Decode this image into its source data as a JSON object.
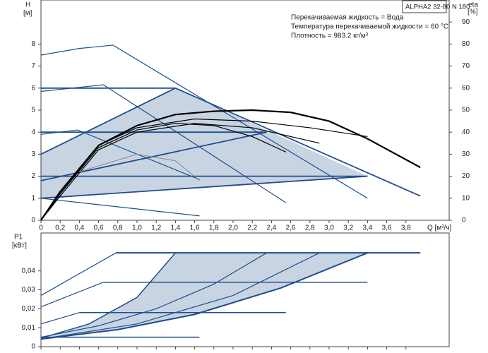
{
  "chart_data": [
    {
      "type": "line",
      "title": "ALPHA2 32-80 N 180",
      "annotations": [
        "Перекачиваемая жидкость = Вода",
        "Температура перекачиваемой жидкости = 60 °C",
        "Плотность = 983.2 кг/м³"
      ],
      "y_label": "H",
      "y_unit": "[м]",
      "y2_label": "eta",
      "y2_unit": "[%]",
      "x_label": "Q [м³/ч]",
      "xlim": [
        0,
        4.25
      ],
      "ylim": [
        0,
        10
      ],
      "y2lim": [
        0,
        100
      ],
      "xticks": [
        0,
        {
          "value": 0.2,
          "label": "0,2"
        },
        {
          "value": 0.4,
          "label": "0,4"
        },
        {
          "value": 0.6,
          "label": "0,6"
        },
        {
          "value": 0.8,
          "label": "0,8"
        },
        {
          "value": 1.0,
          "label": "1,0"
        },
        {
          "value": 1.2,
          "label": "1,2"
        },
        {
          "value": 1.4,
          "label": "1,4"
        },
        {
          "value": 1.6,
          "label": "1,6"
        },
        {
          "value": 1.8,
          "label": "1,8"
        },
        {
          "value": 2.0,
          "label": "2,0"
        },
        {
          "value": 2.2,
          "label": "2,2"
        },
        {
          "value": 2.4,
          "label": "2,4"
        },
        {
          "value": 2.6,
          "label": "2,6"
        },
        {
          "value": 2.8,
          "label": "2,8"
        },
        {
          "value": 3.0,
          "label": "3,0"
        },
        {
          "value": 3.2,
          "label": "3,2"
        },
        {
          "value": 3.4,
          "label": "3,4"
        },
        {
          "value": 3.6,
          "label": "3,6"
        },
        {
          "value": 3.8,
          "label": "3,8"
        }
      ],
      "yticks": [
        0,
        1,
        2,
        3,
        4,
        5,
        6,
        7,
        8
      ],
      "y2ticks": [
        0,
        10,
        20,
        30,
        40,
        50,
        60,
        70,
        80,
        90
      ],
      "shaded": {
        "color": "#c9d4e3",
        "x": [
          0,
          1.4,
          3.4,
          0
        ],
        "y": [
          3,
          6,
          2,
          1
        ]
      },
      "series": [
        {
          "color": "#1f4e8c",
          "width": 1.2,
          "x": [
            0,
            0.4,
            0.75,
            3.4
          ],
          "values": [
            7.5,
            7.8,
            7.95,
            1.0
          ]
        },
        {
          "color": "#1f4e8c",
          "width": 1.2,
          "x": [
            0,
            0.65,
            2.55
          ],
          "values": [
            5.85,
            6.15,
            0.8
          ]
        },
        {
          "color": "#1f4e8c",
          "width": 1.2,
          "x": [
            0,
            0.38,
            1.65
          ],
          "values": [
            3.9,
            4.1,
            1.85
          ]
        },
        {
          "color": "#1f4e8c",
          "width": 1.2,
          "x": [
            0,
            1.65
          ],
          "values": [
            1,
            0.2
          ]
        },
        {
          "color": "#1f4e8c",
          "width": 1.8,
          "x": [
            0,
            1.4
          ],
          "values": [
            6,
            6
          ]
        },
        {
          "color": "#1f4e8c",
          "width": 1.8,
          "x": [
            0,
            2.35
          ],
          "values": [
            4,
            4
          ]
        },
        {
          "color": "#1f4e8c",
          "width": 1.8,
          "x": [
            0,
            3.4
          ],
          "values": [
            2,
            2
          ]
        },
        {
          "color": "#1f4e8c",
          "width": 1.8,
          "x": [
            0,
            1.4
          ],
          "values": [
            3,
            6
          ]
        },
        {
          "color": "#1f4e8c",
          "width": 1.8,
          "x": [
            0,
            2.35
          ],
          "values": [
            1.8,
            4
          ]
        },
        {
          "color": "#1f4e8c",
          "width": 1.8,
          "x": [
            0,
            3.4
          ],
          "values": [
            1,
            2
          ]
        },
        {
          "color": "#1f4e8c",
          "width": 1.8,
          "x": [
            1.4,
            3.95
          ],
          "values": [
            6,
            1.1
          ]
        },
        {
          "color": "#000000",
          "width": 2.2,
          "axis": "y2",
          "x": [
            0,
            0.2,
            0.6,
            1.0,
            1.4,
            1.8,
            2.2,
            2.6,
            3.0,
            3.4,
            3.95
          ],
          "values": [
            0,
            13,
            34,
            43,
            48,
            49.5,
            50,
            49,
            45,
            37,
            24
          ]
        },
        {
          "color": "#000000",
          "width": 1.2,
          "axis": "y2",
          "x": [
            0,
            0.2,
            0.6,
            1.0,
            1.4,
            1.8,
            2.2,
            2.55
          ],
          "values": [
            0,
            12,
            33,
            41,
            44,
            43,
            38,
            31
          ]
        },
        {
          "color": "#000000",
          "width": 1.2,
          "axis": "y2",
          "x": [
            0,
            0.2,
            0.6,
            1.0,
            1.6,
            2.2,
            2.8,
            3.4
          ],
          "values": [
            0,
            12,
            34,
            42,
            46,
            45,
            42,
            38
          ]
        },
        {
          "color": "#000000",
          "width": 1.2,
          "axis": "y2",
          "x": [
            0,
            0.2,
            0.6,
            1.0,
            1.6,
            2.2,
            2.9
          ],
          "values": [
            0,
            11,
            32,
            40,
            44,
            42,
            35
          ]
        },
        {
          "color": "#888888",
          "width": 1,
          "axis": "y2",
          "x": [
            0.4,
            1.0,
            1.4,
            1.65
          ],
          "values": [
            22,
            30,
            27,
            18
          ]
        }
      ]
    },
    {
      "type": "line",
      "y_label": "P1",
      "y_unit": "[кВт]",
      "xlim": [
        0,
        4.25
      ],
      "ylim": [
        0,
        0.06
      ],
      "yticks": [
        0,
        {
          "value": 0.01,
          "label": "0,01"
        },
        {
          "value": 0.02,
          "label": "0,02"
        },
        {
          "value": 0.03,
          "label": "0,03"
        },
        {
          "value": 0.04,
          "label": "0,04"
        }
      ],
      "shaded": {
        "color": "#c9d4e3",
        "x": [
          0,
          0.5,
          1.0,
          1.4,
          3.4,
          2.5,
          1.6,
          0.8,
          0
        ],
        "y": [
          0.0045,
          0.012,
          0.026,
          0.0495,
          0.0495,
          0.031,
          0.017,
          0.009,
          0.004
        ]
      },
      "series": [
        {
          "color": "#1f4e8c",
          "width": 2,
          "x": [
            0.78,
            3.95
          ],
          "values": [
            0.0495,
            0.0495
          ]
        },
        {
          "color": "#1f4e8c",
          "width": 1.5,
          "x": [
            0.65,
            3.4
          ],
          "values": [
            0.034,
            0.034
          ]
        },
        {
          "color": "#1f4e8c",
          "width": 1.5,
          "x": [
            0.4,
            2.55
          ],
          "values": [
            0.018,
            0.018
          ]
        },
        {
          "color": "#1f4e8c",
          "width": 1.5,
          "x": [
            0,
            1.65
          ],
          "values": [
            0.005,
            0.005
          ]
        },
        {
          "color": "#1f4e8c",
          "width": 1.2,
          "x": [
            0,
            0.78
          ],
          "values": [
            0.027,
            0.0495
          ]
        },
        {
          "color": "#1f4e8c",
          "width": 1.2,
          "x": [
            0,
            0.65
          ],
          "values": [
            0.021,
            0.034
          ]
        },
        {
          "color": "#1f4e8c",
          "width": 1.2,
          "x": [
            0,
            0.4
          ],
          "values": [
            0.012,
            0.018
          ]
        },
        {
          "color": "#1f4e8c",
          "width": 1.5,
          "x": [
            0,
            0.5,
            1.0,
            1.4
          ],
          "values": [
            0.0045,
            0.012,
            0.026,
            0.0495
          ]
        },
        {
          "color": "#1f4e8c",
          "width": 1.2,
          "x": [
            0,
            0.6,
            1.2,
            1.8,
            2.35
          ],
          "values": [
            0.005,
            0.011,
            0.02,
            0.033,
            0.0495
          ]
        },
        {
          "color": "#1f4e8c",
          "width": 1.2,
          "x": [
            0,
            1.0,
            2.0,
            2.9
          ],
          "values": [
            0.004,
            0.012,
            0.027,
            0.0495
          ]
        },
        {
          "color": "#1f4e8c",
          "width": 2,
          "x": [
            0,
            0.8,
            1.6,
            2.5,
            3.4
          ],
          "values": [
            0.004,
            0.009,
            0.017,
            0.031,
            0.0495
          ]
        }
      ]
    }
  ]
}
